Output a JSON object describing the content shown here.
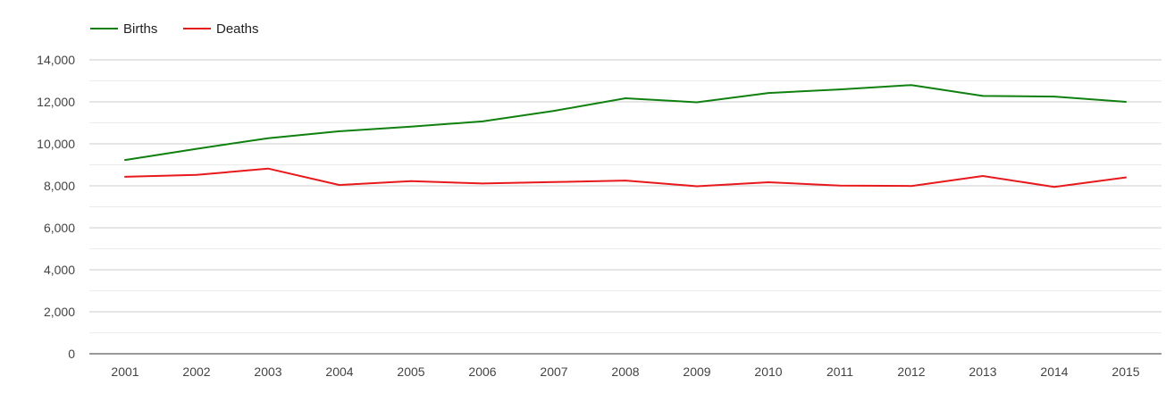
{
  "chart_data": {
    "type": "line",
    "title": "",
    "xlabel": "",
    "ylabel": "",
    "x": [
      "2001",
      "2002",
      "2003",
      "2004",
      "2005",
      "2006",
      "2007",
      "2008",
      "2009",
      "2010",
      "2011",
      "2012",
      "2013",
      "2014",
      "2015"
    ],
    "ylim": [
      0,
      14000
    ],
    "yticks": [
      0,
      2000,
      4000,
      6000,
      8000,
      10000,
      12000,
      14000
    ],
    "ytick_labels": [
      "0",
      "2,000",
      "4,000",
      "6,000",
      "8,000",
      "10,000",
      "12,000",
      "14,000"
    ],
    "grid": true,
    "legend_position": "top-left",
    "series": [
      {
        "name": "Births",
        "color": "#108010",
        "values": [
          9230,
          9760,
          10270,
          10600,
          10820,
          11070,
          11570,
          12170,
          11980,
          12420,
          12590,
          12800,
          12280,
          12250,
          12000
        ]
      },
      {
        "name": "Deaths",
        "color": "#e8191c",
        "values": [
          8430,
          8520,
          8820,
          8040,
          8220,
          8110,
          8180,
          8250,
          7980,
          8170,
          8010,
          7990,
          8470,
          7950,
          8400
        ]
      }
    ]
  }
}
